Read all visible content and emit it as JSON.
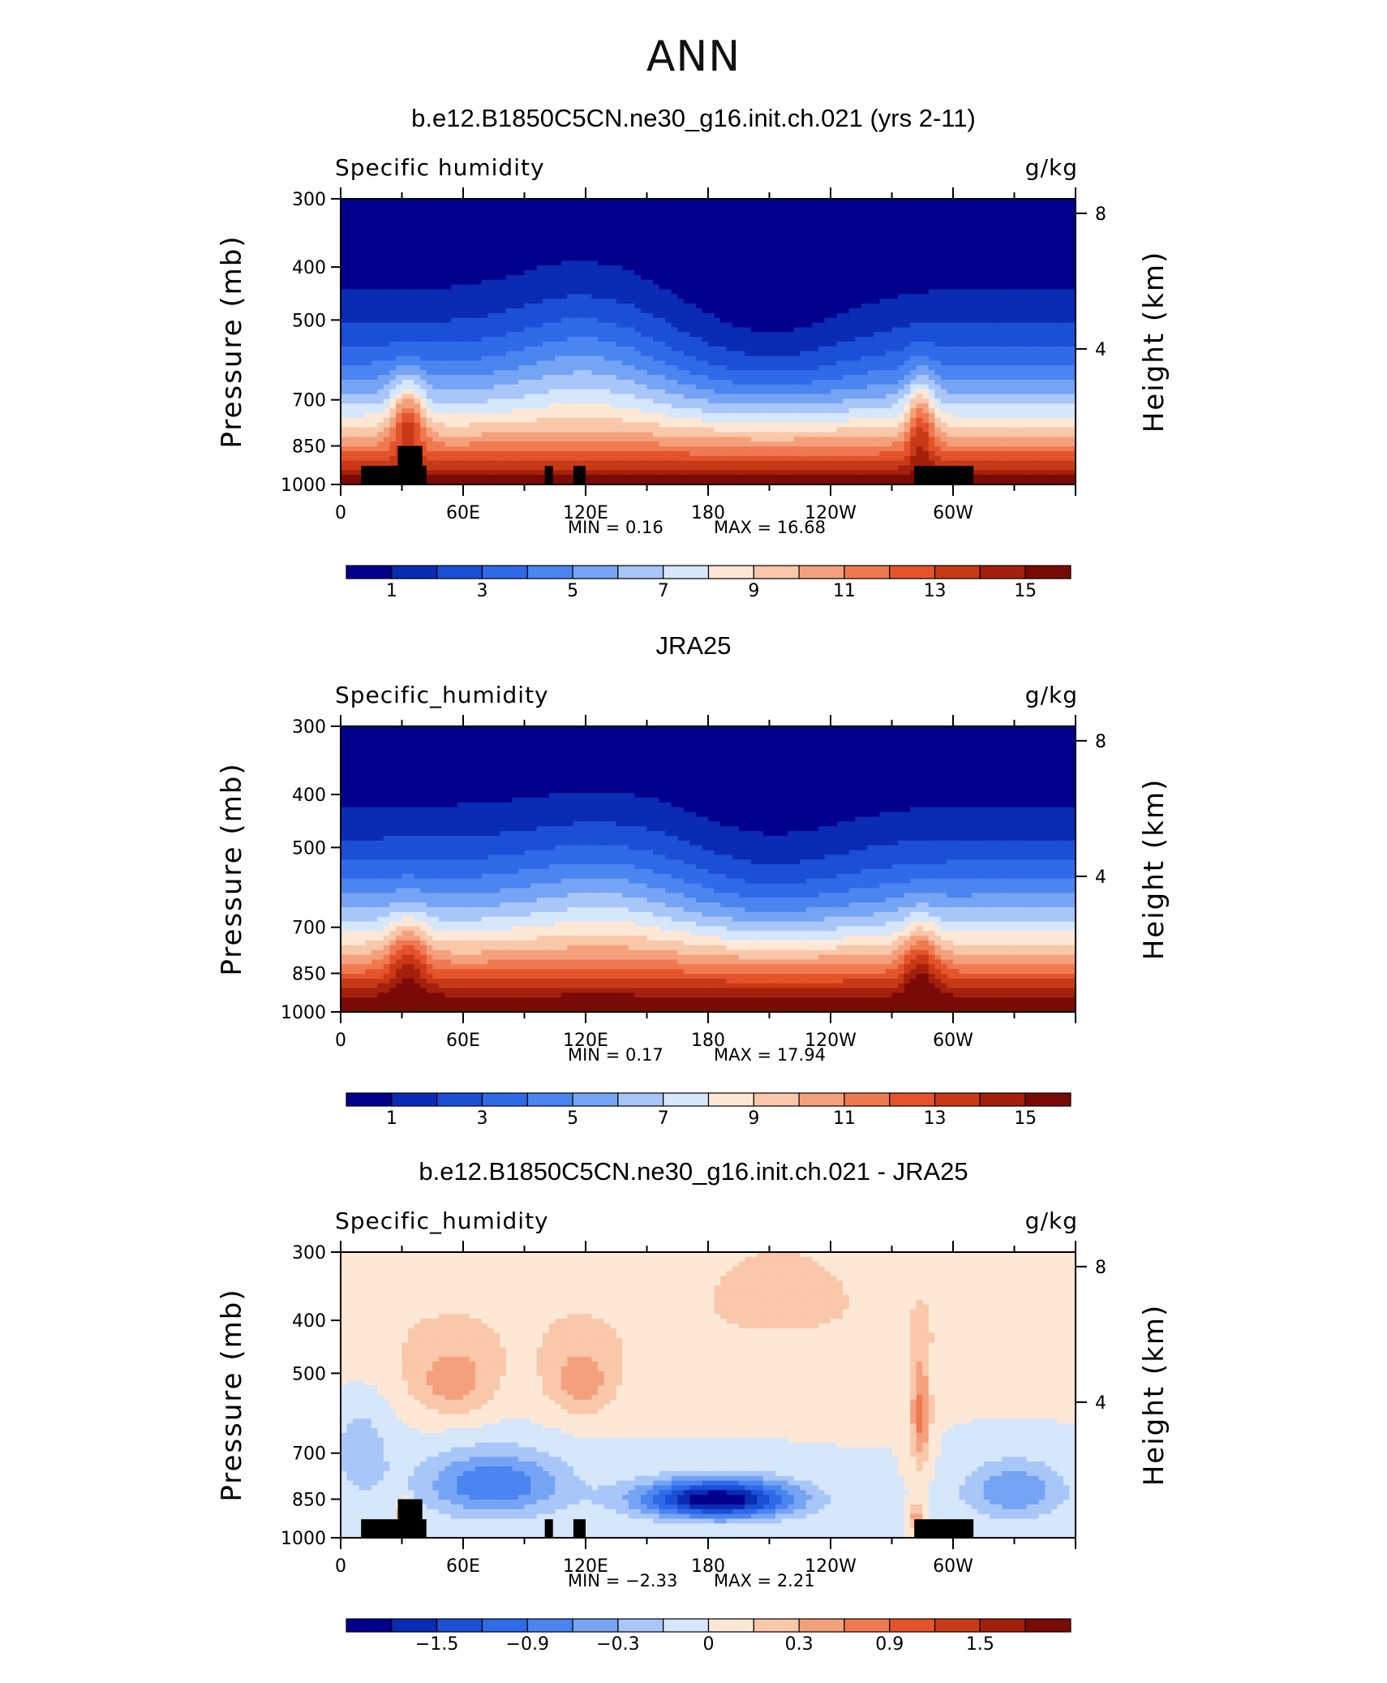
{
  "page_title": "ANN",
  "chart_data": [
    {
      "type": "heatmap",
      "title": "b.e12.B1850C5CN.ne30_g16.init.ch.021 (yrs 2-11)",
      "left_label": "Specific humidity",
      "right_label": "g/kg",
      "ylabel": "Pressure (mb)",
      "ylabel_right": "Height (km)",
      "x_ticks": [
        "0",
        "60E",
        "120E",
        "180",
        "120W",
        "60W"
      ],
      "y_ticks": [
        "300",
        "400",
        "500",
        "700",
        "850",
        "1000"
      ],
      "height_ticks": [
        "8",
        "4"
      ],
      "min_text": "MIN =     0.16",
      "max_text": "MAX =    16.68",
      "colorbar_labels": [
        "1",
        "3",
        "5",
        "7",
        "9",
        "11",
        "13",
        "15"
      ],
      "colorbar_colors": [
        "#00008c",
        "#0a2bb4",
        "#1a4fd6",
        "#2f6ae8",
        "#4a85f0",
        "#76a4f4",
        "#a8c6f8",
        "#d6e6fb",
        "#fde8d6",
        "#f9c7a9",
        "#f5a07c",
        "#f07a50",
        "#e4532b",
        "#c83a16",
        "#a4200d",
        "#7a0a05"
      ],
      "value_range": [
        0,
        16
      ],
      "has_terrain": true,
      "field": "model_q"
    },
    {
      "type": "heatmap",
      "title": "JRA25",
      "left_label": "Specific_humidity",
      "right_label": "g/kg",
      "ylabel": "Pressure (mb)",
      "ylabel_right": "Height (km)",
      "x_ticks": [
        "0",
        "60E",
        "120E",
        "180",
        "120W",
        "60W"
      ],
      "y_ticks": [
        "300",
        "400",
        "500",
        "700",
        "850",
        "1000"
      ],
      "height_ticks": [
        "8",
        "4"
      ],
      "min_text": "MIN =     0.17",
      "max_text": "MAX =    17.94",
      "colorbar_labels": [
        "1",
        "3",
        "5",
        "7",
        "9",
        "11",
        "13",
        "15"
      ],
      "colorbar_colors": [
        "#00008c",
        "#0a2bb4",
        "#1a4fd6",
        "#2f6ae8",
        "#4a85f0",
        "#76a4f4",
        "#a8c6f8",
        "#d6e6fb",
        "#fde8d6",
        "#f9c7a9",
        "#f5a07c",
        "#f07a50",
        "#e4532b",
        "#c83a16",
        "#a4200d",
        "#7a0a05"
      ],
      "value_range": [
        0,
        16
      ],
      "has_terrain": false,
      "field": "obs_q"
    },
    {
      "type": "heatmap",
      "title": "b.e12.B1850C5CN.ne30_g16.init.ch.021 - JRA25",
      "left_label": "Specific_humidity",
      "right_label": "g/kg",
      "ylabel": "Pressure (mb)",
      "ylabel_right": "Height (km)",
      "x_ticks": [
        "0",
        "60E",
        "120E",
        "180",
        "120W",
        "60W"
      ],
      "y_ticks": [
        "300",
        "400",
        "500",
        "700",
        "850",
        "1000"
      ],
      "height_ticks": [
        "8",
        "4"
      ],
      "min_text": "MIN =    −2.33",
      "max_text": "MAX =     2.21",
      "colorbar_labels": [
        "−1.5",
        "−0.9",
        "−0.3",
        "0",
        "0.3",
        "0.9",
        "1.5"
      ],
      "colorbar_colors": [
        "#00008c",
        "#0a2bb4",
        "#1a4fd6",
        "#2f6ae8",
        "#4a85f0",
        "#76a4f4",
        "#a8c6f8",
        "#d6e6fb",
        "#fde8d6",
        "#f9c7a9",
        "#f5a07c",
        "#f07a50",
        "#e4532b",
        "#c83a16",
        "#a4200d",
        "#7a0a05"
      ],
      "value_range": [
        -2.4,
        2.4
      ],
      "has_terrain": true,
      "field": "diff_q"
    }
  ]
}
